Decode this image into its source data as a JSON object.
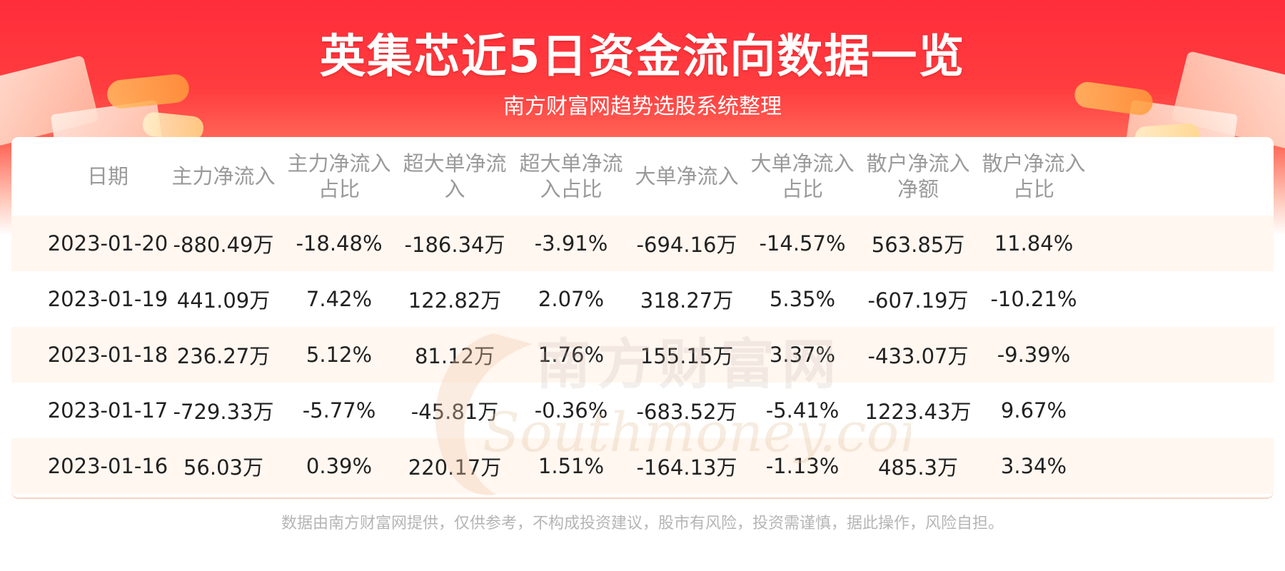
{
  "title": "英集芯近5日资金流向数据一览",
  "subtitle": "南方财富网趋势选股系统整理",
  "watermark": {
    "cn": "南方财富网",
    "en": "Southmoney.com"
  },
  "footer": "数据由南方财富网提供，仅供参考，不构成投资建议，股市有风险，投资需谨慎，据此操作，风险自担。",
  "colors": {
    "banner_red": "#ff2d3a",
    "header_text": "#9a9a9a",
    "stripe": "#fff7f0",
    "text": "#222222"
  },
  "chart_data": {
    "type": "table",
    "columns": [
      [
        "日期"
      ],
      [
        "主力净流入"
      ],
      [
        "主力净流入",
        "占比"
      ],
      [
        "超大单净流",
        "入"
      ],
      [
        "超大单净流",
        "入占比"
      ],
      [
        "大单净流入"
      ],
      [
        "大单净流入",
        "占比"
      ],
      [
        "散户净流入",
        "净额"
      ],
      [
        "散户净流入",
        "占比"
      ]
    ],
    "rows": [
      [
        "2023-01-20",
        "-880.49万",
        "-18.48%",
        "-186.34万",
        "-3.91%",
        "-694.16万",
        "-14.57%",
        "563.85万",
        "11.84%"
      ],
      [
        "2023-01-19",
        "441.09万",
        "7.42%",
        "122.82万",
        "2.07%",
        "318.27万",
        "5.35%",
        "-607.19万",
        "-10.21%"
      ],
      [
        "2023-01-18",
        "236.27万",
        "5.12%",
        "81.12万",
        "1.76%",
        "155.15万",
        "3.37%",
        "-433.07万",
        "-9.39%"
      ],
      [
        "2023-01-17",
        "-729.33万",
        "-5.77%",
        "-45.81万",
        "-0.36%",
        "-683.52万",
        "-5.41%",
        "1223.43万",
        "9.67%"
      ],
      [
        "2023-01-16",
        "56.03万",
        "0.39%",
        "220.17万",
        "1.51%",
        "-164.13万",
        "-1.13%",
        "485.3万",
        "3.34%"
      ]
    ]
  }
}
